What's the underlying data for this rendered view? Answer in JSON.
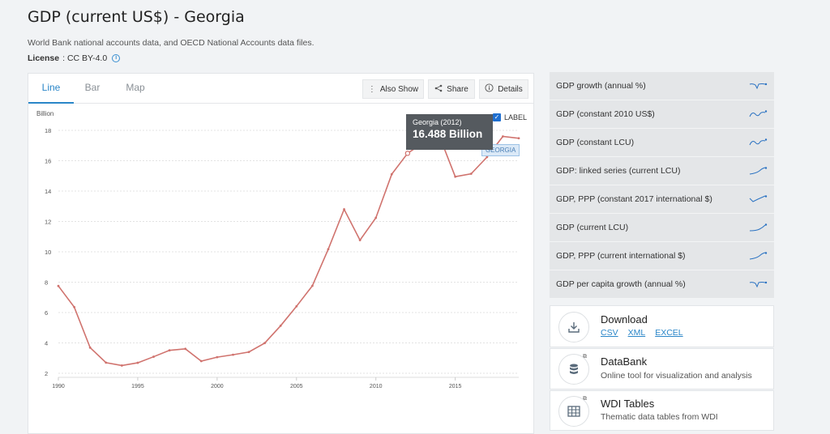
{
  "page": {
    "title": "GDP (current US$) - Georgia",
    "source": "World Bank national accounts data, and OECD National Accounts data files.",
    "license_label": "License",
    "license_value": ": CC BY-4.0"
  },
  "tabs": [
    {
      "label": "Line",
      "active": true
    },
    {
      "label": "Bar",
      "active": false
    },
    {
      "label": "Map",
      "active": false
    }
  ],
  "toolbar": {
    "also_show": "Also Show",
    "share": "Share",
    "details": "Details"
  },
  "label_toggle": "LABEL",
  "tooltip": {
    "title": "Georgia (2012)",
    "value": "16.488 Billion"
  },
  "series_label": "GEORGIA",
  "chart_data": {
    "type": "line",
    "ylabel": "Billion",
    "xlim": [
      1990,
      2019
    ],
    "ylim": [
      2,
      18
    ],
    "yticks": [
      2,
      4,
      6,
      8,
      10,
      12,
      14,
      16,
      18
    ],
    "xticks": [
      1990,
      1995,
      2000,
      2005,
      2010,
      2015
    ],
    "grid": true,
    "color": "#d0736e",
    "series": [
      {
        "name": "Georgia",
        "x": [
          1990,
          1991,
          1992,
          1993,
          1994,
          1995,
          1996,
          1997,
          1998,
          1999,
          2000,
          2001,
          2002,
          2003,
          2004,
          2005,
          2006,
          2007,
          2008,
          2009,
          2010,
          2011,
          2012,
          2013,
          2014,
          2015,
          2016,
          2017,
          2018,
          2019
        ],
        "values": [
          7.75,
          6.36,
          3.69,
          2.7,
          2.51,
          2.69,
          3.09,
          3.51,
          3.61,
          2.8,
          3.06,
          3.22,
          3.4,
          3.99,
          5.13,
          6.41,
          7.76,
          10.17,
          12.8,
          10.77,
          12.24,
          15.11,
          16.49,
          17.19,
          17.63,
          14.95,
          15.14,
          16.24,
          17.6,
          17.48
        ]
      }
    ]
  },
  "related": [
    {
      "label": "GDP growth (annual %)",
      "spark": "dip"
    },
    {
      "label": "GDP (constant 2010 US$)",
      "spark": "wave"
    },
    {
      "label": "GDP (constant LCU)",
      "spark": "wave"
    },
    {
      "label": "GDP: linked series (current LCU)",
      "spark": "rise"
    },
    {
      "label": "GDP, PPP (constant 2017 international $)",
      "spark": "vrise"
    },
    {
      "label": "GDP (current LCU)",
      "spark": "curve"
    },
    {
      "label": "GDP, PPP (current international $)",
      "spark": "rise"
    },
    {
      "label": "GDP per capita growth (annual %)",
      "spark": "dip"
    }
  ],
  "download": {
    "title": "Download",
    "links": [
      "CSV",
      "XML",
      "EXCEL"
    ]
  },
  "databank": {
    "title": "DataBank",
    "subtitle": "Online tool for visualization and analysis"
  },
  "wdi": {
    "title": "WDI Tables",
    "subtitle": "Thematic data tables from WDI"
  },
  "colors": {
    "accent": "#2a86c8",
    "line": "#d0736e",
    "spark": "#2a72c2"
  }
}
